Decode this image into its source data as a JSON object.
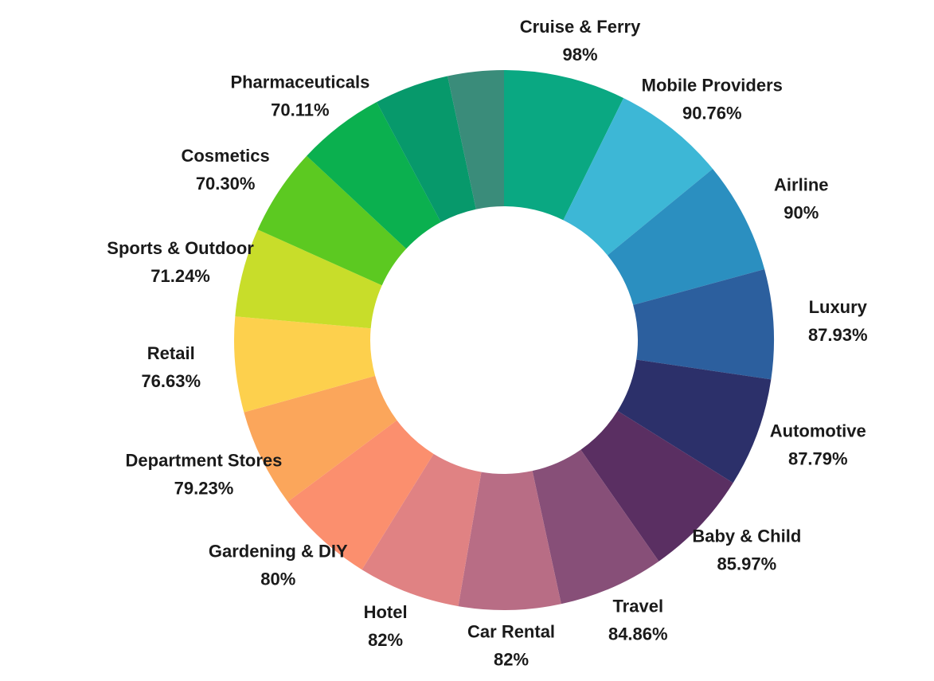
{
  "chart_data": {
    "type": "donut",
    "categories": [
      "Cruise & Ferry",
      "Mobile Providers",
      "Airline",
      "Luxury",
      "Automotive",
      "Baby & Child",
      "Travel",
      "Car Rental",
      "Hotel",
      "Gardening & DIY",
      "Department Stores",
      "Retail",
      "Sports & Outdoor",
      "Cosmetics",
      "Pharmaceuticals",
      null,
      null
    ],
    "values": [
      98,
      90.76,
      90,
      87.93,
      87.79,
      85.97,
      84.86,
      82,
      82,
      80,
      79.23,
      76.63,
      71.24,
      70.3,
      70.11,
      60,
      45
    ],
    "value_labels": [
      "98%",
      "90.76%",
      "90%",
      "87.93%",
      "87.79%",
      "85.97%",
      "84.86%",
      "82%",
      "82%",
      "80%",
      "79.23%",
      "76.63%",
      "71.24%",
      "70.30%",
      "70.11%",
      null,
      null
    ],
    "colors": [
      "#0aa882",
      "#3db7d6",
      "#2b8fc0",
      "#2c5f9e",
      "#2c306a",
      "#5a2f62",
      "#874f78",
      "#b86d85",
      "#e08283",
      "#fb8f6e",
      "#fba65b",
      "#fdd04d",
      "#c8dd2a",
      "#5cc921",
      "#0bb04f",
      "#07996b",
      "#3a8c7a"
    ]
  }
}
